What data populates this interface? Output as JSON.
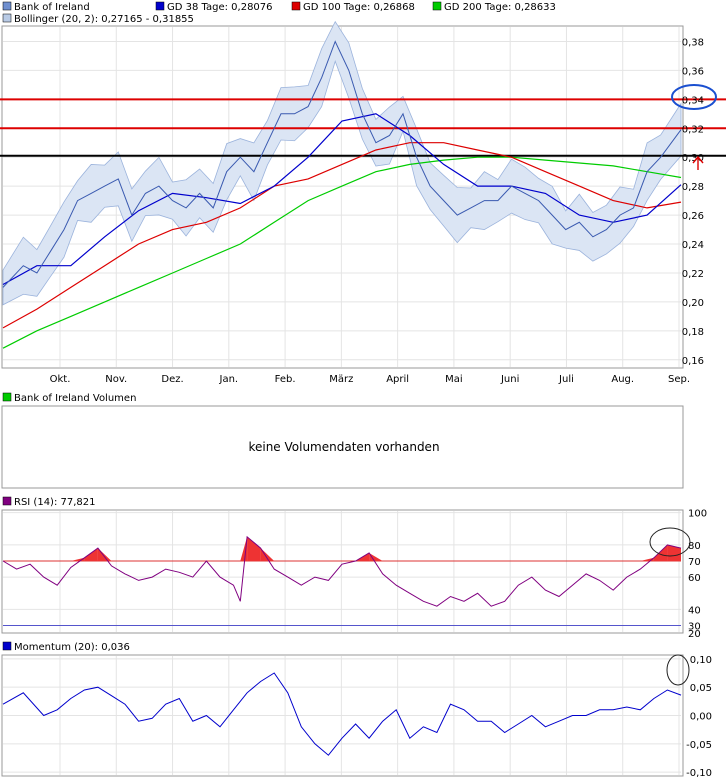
{
  "chart_data": [
    {
      "type": "line",
      "title": "",
      "legend": {
        "row1": [
          {
            "name": "Bank of Ireland",
            "color": "#6f8fcf"
          },
          {
            "name": "GD 38 Tage: 0,28076",
            "color": "#0000cc"
          },
          {
            "name": "GD 100 Tage: 0,26868",
            "color": "#dd0000"
          },
          {
            "name": "GD 200 Tage: 0,28633",
            "color": "#00cc00"
          }
        ],
        "row2": [
          {
            "name": "Bollinger (20, 2): 0,27165 - 0,31855",
            "color": "#b9cbe6"
          }
        ]
      },
      "x_months": [
        "Okt.",
        "Nov.",
        "Dez.",
        "Jan.",
        "Feb.",
        "März",
        "April",
        "Mai",
        "Juni",
        "Juli",
        "Aug.",
        "Sep."
      ],
      "ylim": [
        0.155,
        0.39
      ],
      "yticks": [
        "0,38",
        "0,36",
        "0,34",
        "0,32",
        "0,30",
        "0,28",
        "0,26",
        "0,24",
        "0,22",
        "0,20",
        "0,18",
        "0,16"
      ],
      "ytick_values": [
        0.38,
        0.36,
        0.34,
        0.32,
        0.3,
        0.28,
        0.26,
        0.24,
        0.22,
        0.2,
        0.18,
        0.16
      ],
      "hlines": [
        {
          "value": 0.34,
          "color": "#dd0000"
        },
        {
          "value": 0.32,
          "color": "#dd0000"
        },
        {
          "value": 0.301,
          "color": "#000000"
        }
      ],
      "series": [
        {
          "name": "Bank of Ireland",
          "color": "#3a5ab0",
          "x": [
            0,
            0.03,
            0.05,
            0.07,
            0.09,
            0.11,
            0.13,
            0.15,
            0.17,
            0.19,
            0.21,
            0.23,
            0.25,
            0.27,
            0.29,
            0.31,
            0.33,
            0.35,
            0.37,
            0.39,
            0.41,
            0.43,
            0.45,
            0.47,
            0.49,
            0.51,
            0.53,
            0.55,
            0.57,
            0.59,
            0.61,
            0.63,
            0.65,
            0.67,
            0.69,
            0.71,
            0.73,
            0.75,
            0.77,
            0.79,
            0.81,
            0.83,
            0.85,
            0.87,
            0.89,
            0.91,
            0.93,
            0.95,
            0.97,
            1.0
          ],
          "values": [
            0.21,
            0.225,
            0.22,
            0.235,
            0.25,
            0.27,
            0.275,
            0.28,
            0.285,
            0.26,
            0.275,
            0.28,
            0.27,
            0.265,
            0.275,
            0.265,
            0.29,
            0.3,
            0.29,
            0.31,
            0.33,
            0.33,
            0.335,
            0.355,
            0.38,
            0.36,
            0.33,
            0.31,
            0.315,
            0.33,
            0.3,
            0.28,
            0.27,
            0.26,
            0.265,
            0.27,
            0.27,
            0.28,
            0.275,
            0.27,
            0.26,
            0.25,
            0.255,
            0.245,
            0.25,
            0.26,
            0.265,
            0.29,
            0.3,
            0.319
          ]
        },
        {
          "name": "GD 38 Tage",
          "color": "#0000cc",
          "x": [
            0,
            0.05,
            0.1,
            0.15,
            0.2,
            0.25,
            0.3,
            0.35,
            0.4,
            0.45,
            0.5,
            0.55,
            0.6,
            0.65,
            0.7,
            0.75,
            0.8,
            0.85,
            0.9,
            0.95,
            1.0
          ],
          "values": [
            0.212,
            0.225,
            0.225,
            0.245,
            0.263,
            0.275,
            0.272,
            0.268,
            0.28,
            0.3,
            0.325,
            0.33,
            0.315,
            0.295,
            0.28,
            0.28,
            0.275,
            0.26,
            0.255,
            0.26,
            0.281
          ]
        },
        {
          "name": "GD 100 Tage",
          "color": "#dd0000",
          "x": [
            0,
            0.05,
            0.1,
            0.15,
            0.2,
            0.25,
            0.3,
            0.35,
            0.4,
            0.45,
            0.5,
            0.55,
            0.6,
            0.65,
            0.7,
            0.75,
            0.8,
            0.85,
            0.9,
            0.95,
            1.0
          ],
          "values": [
            0.182,
            0.195,
            0.21,
            0.225,
            0.24,
            0.25,
            0.255,
            0.265,
            0.28,
            0.285,
            0.295,
            0.305,
            0.31,
            0.31,
            0.305,
            0.3,
            0.29,
            0.28,
            0.27,
            0.265,
            0.269
          ]
        },
        {
          "name": "GD 200 Tage",
          "color": "#00cc00",
          "x": [
            0,
            0.05,
            0.1,
            0.15,
            0.2,
            0.25,
            0.3,
            0.35,
            0.4,
            0.45,
            0.5,
            0.55,
            0.6,
            0.65,
            0.7,
            0.75,
            0.8,
            0.85,
            0.9,
            0.95,
            1.0
          ],
          "values": [
            0.168,
            0.18,
            0.19,
            0.2,
            0.21,
            0.22,
            0.23,
            0.24,
            0.255,
            0.27,
            0.28,
            0.29,
            0.295,
            0.298,
            0.3,
            0.3,
            0.298,
            0.296,
            0.294,
            0.29,
            0.286
          ]
        }
      ]
    },
    {
      "type": "bar",
      "title": "Bank of Ireland Volumen",
      "legend_color": "#00cc00",
      "message": "keine Volumendaten vorhanden"
    },
    {
      "type": "line",
      "title": "RSI (14): 77,821",
      "legend_color": "#800080",
      "ylim": [
        26,
        101
      ],
      "yticks": [
        "100",
        "80",
        "70",
        "60",
        "40",
        "30",
        "20"
      ],
      "ytick_values": [
        100,
        80,
        70,
        60,
        40,
        30,
        20
      ],
      "hlines": [
        {
          "value": 70,
          "color": "#dd3333"
        },
        {
          "value": 30,
          "color": "#5555cc"
        }
      ],
      "series": [
        {
          "name": "RSI (14)",
          "color": "#800080",
          "x": [
            0,
            0.02,
            0.04,
            0.06,
            0.08,
            0.1,
            0.12,
            0.14,
            0.16,
            0.18,
            0.2,
            0.22,
            0.24,
            0.26,
            0.28,
            0.3,
            0.32,
            0.34,
            0.35,
            0.36,
            0.38,
            0.4,
            0.42,
            0.44,
            0.46,
            0.48,
            0.5,
            0.52,
            0.54,
            0.56,
            0.58,
            0.6,
            0.62,
            0.64,
            0.66,
            0.68,
            0.7,
            0.72,
            0.74,
            0.76,
            0.78,
            0.8,
            0.82,
            0.84,
            0.86,
            0.88,
            0.9,
            0.92,
            0.94,
            0.96,
            0.98,
            1.0
          ],
          "values": [
            70,
            65,
            68,
            60,
            55,
            66,
            72,
            78,
            67,
            62,
            58,
            60,
            65,
            63,
            60,
            70,
            60,
            55,
            45,
            85,
            78,
            65,
            60,
            55,
            60,
            58,
            68,
            70,
            75,
            62,
            55,
            50,
            45,
            42,
            48,
            45,
            50,
            42,
            45,
            55,
            60,
            52,
            48,
            55,
            62,
            58,
            52,
            60,
            65,
            72,
            80,
            78
          ]
        }
      ],
      "overbought_fill": "#ee3333"
    },
    {
      "type": "line",
      "title": "Momentum (20): 0,036",
      "legend_color": "#0000cc",
      "ylim": [
        -0.105,
        0.105
      ],
      "yticks": [
        "0,10",
        "0,05",
        "0,00",
        "-0,05",
        "-0,10"
      ],
      "ytick_values": [
        0.1,
        0.05,
        0.0,
        -0.05,
        -0.1
      ],
      "series": [
        {
          "name": "Momentum (20)",
          "color": "#0000cc",
          "x": [
            0,
            0.03,
            0.06,
            0.08,
            0.1,
            0.12,
            0.14,
            0.16,
            0.18,
            0.2,
            0.22,
            0.24,
            0.26,
            0.28,
            0.3,
            0.32,
            0.34,
            0.36,
            0.38,
            0.4,
            0.42,
            0.44,
            0.46,
            0.48,
            0.5,
            0.52,
            0.54,
            0.56,
            0.58,
            0.6,
            0.62,
            0.64,
            0.66,
            0.68,
            0.7,
            0.72,
            0.74,
            0.76,
            0.78,
            0.8,
            0.82,
            0.84,
            0.86,
            0.88,
            0.9,
            0.92,
            0.94,
            0.96,
            0.98,
            1.0
          ],
          "values": [
            0.02,
            0.04,
            0.0,
            0.01,
            0.03,
            0.045,
            0.05,
            0.035,
            0.02,
            -0.01,
            -0.005,
            0.02,
            0.03,
            -0.01,
            0.0,
            -0.02,
            0.01,
            0.04,
            0.06,
            0.075,
            0.04,
            -0.02,
            -0.05,
            -0.07,
            -0.04,
            -0.015,
            -0.04,
            -0.01,
            0.01,
            -0.04,
            -0.02,
            -0.03,
            0.02,
            0.01,
            -0.01,
            -0.01,
            -0.03,
            -0.015,
            0.0,
            -0.02,
            -0.01,
            0.0,
            0.0,
            0.01,
            0.01,
            0.015,
            0.01,
            0.03,
            0.045,
            0.036
          ]
        }
      ]
    }
  ]
}
